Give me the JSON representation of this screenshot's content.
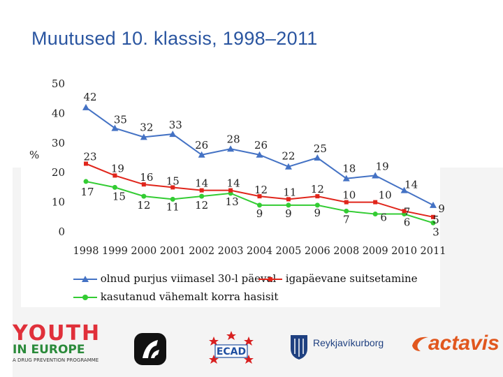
{
  "slide": {
    "title": "Muutused 10. klassis, 1998–2011"
  },
  "chart_data": {
    "type": "line",
    "title": "Muutused 10. klassis, 1998–2011",
    "ylabel": "%",
    "xlabel": "",
    "ylim": [
      0,
      50
    ],
    "yticks": [
      "0",
      "10",
      "20",
      "30",
      "40",
      "50"
    ],
    "categories": [
      "1998",
      "1999",
      "2000",
      "2001",
      "2002",
      "2003",
      "2004",
      "2005",
      "2006",
      "2008",
      "2009",
      "2010",
      "2011"
    ],
    "series": [
      {
        "name": "olnud purjus viimasel 30-l päeval",
        "color": "#4472c4",
        "marker": "triangle",
        "values": [
          42,
          35,
          32,
          33,
          26,
          28,
          26,
          22,
          25,
          18,
          19,
          14,
          9
        ],
        "labels": [
          "42",
          "35",
          "32",
          "33",
          "26",
          "28",
          "26",
          "22",
          "25",
          "18",
          "19",
          "14",
          "9"
        ]
      },
      {
        "name": "igapäevane suitsetamine",
        "color": "#e0251b",
        "marker": "square",
        "values": [
          23,
          19,
          16,
          15,
          14,
          14,
          12,
          11,
          12,
          10,
          10,
          7,
          5
        ],
        "labels": [
          "23",
          "19",
          "16",
          "15",
          "14",
          "14",
          "12",
          "11",
          "12",
          "10",
          "10",
          "7",
          "5"
        ]
      },
      {
        "name": "kasutanud vähemalt korra hasisit",
        "color": "#33cc33",
        "marker": "circle",
        "values": [
          17,
          15,
          12,
          11,
          12,
          13,
          9,
          9,
          9,
          7,
          6,
          6,
          3
        ],
        "labels": [
          "17",
          "15",
          "12",
          "11",
          "12",
          "13",
          "9",
          "9",
          "9",
          "7",
          "6",
          "6",
          "3"
        ]
      }
    ]
  },
  "logos": {
    "youth_top": "YOUTH",
    "youth_mid": "IN EUROPE",
    "youth_bottom": "A DRUG PREVENTION PROGRAMME",
    "ecad": "ECAD",
    "reykjavik": "Reykjavíkurborg",
    "actavis": "actavis"
  }
}
